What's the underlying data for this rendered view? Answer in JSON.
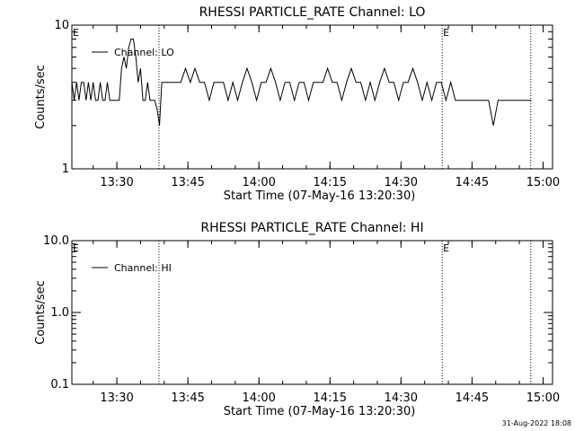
{
  "chart_data": [
    {
      "type": "line",
      "title": "RHESSI PARTICLE_RATE Channel: LO",
      "xlabel": "Start Time (07-May-16 13:20:30)",
      "ylabel": "Counts/sec",
      "y_scale": "log",
      "ylim": [
        1,
        10
      ],
      "yticks": [
        "1",
        "10"
      ],
      "x_unit": "minutes after 13:20:30",
      "xlim": [
        0,
        160
      ],
      "xticks": [
        {
          "label": "13:30",
          "value": 9.5
        },
        {
          "label": "13:45",
          "value": 24.5
        },
        {
          "label": "14:00",
          "value": 39.5
        },
        {
          "label": "14:15",
          "value": 54.5
        },
        {
          "label": "14:30",
          "value": 69.5
        },
        {
          "label": "14:45",
          "value": 84.5
        },
        {
          "label": "15:00",
          "value": 99.5
        }
      ],
      "event_lines": [
        18.4,
        78.2,
        96.9
      ],
      "event_markers": [
        {
          "text": "E",
          "x": 0
        },
        {
          "text": "E",
          "x": 78.2
        }
      ],
      "legend": {
        "label": "Channel: LO",
        "location": "top-left"
      },
      "series": [
        {
          "name": "Channel: LO",
          "x": [
            0,
            0.5,
            1.0,
            1.5,
            2.0,
            2.5,
            3.0,
            3.5,
            4.0,
            4.5,
            5.0,
            5.5,
            6.0,
            6.5,
            7.0,
            7.5,
            8.0,
            8.5,
            9.0,
            9.5,
            10.0,
            10.5,
            11.0,
            11.5,
            12.0,
            12.5,
            13.0,
            13.5,
            14.0,
            14.5,
            15.0,
            15.5,
            16.0,
            16.5,
            17.0,
            17.5,
            18.0,
            18.5,
            19.0,
            20,
            22,
            23,
            24,
            25,
            26,
            27,
            28,
            29,
            30,
            31,
            32,
            33,
            34,
            35,
            36,
            37,
            38,
            39,
            40,
            41,
            42,
            43,
            44,
            45,
            46,
            47,
            48,
            49,
            50,
            51,
            52,
            53,
            54,
            55,
            56,
            57,
            58,
            59,
            60,
            61,
            62,
            63,
            64,
            65,
            66,
            67,
            68,
            69,
            70,
            71,
            72,
            73,
            74,
            75,
            76,
            77,
            78,
            79,
            80,
            81,
            82,
            83,
            84,
            85,
            86,
            87,
            88,
            89,
            90,
            91,
            92,
            93,
            94,
            95,
            96,
            97
          ],
          "y": [
            4,
            3,
            4,
            3,
            4,
            4,
            3,
            4,
            3,
            4,
            3,
            3,
            4,
            3,
            3,
            4,
            3,
            3,
            3,
            3,
            3,
            5,
            6,
            5,
            7,
            8,
            8,
            6,
            4,
            5,
            3,
            3,
            4,
            3,
            3,
            3,
            2.6,
            2,
            4,
            4,
            4,
            4,
            5,
            4,
            5,
            4,
            4,
            3,
            4,
            4,
            4,
            3,
            4,
            3,
            4,
            5,
            4,
            3,
            4,
            4,
            5,
            4,
            3,
            4,
            4,
            3,
            4,
            4,
            3,
            4,
            4,
            4,
            5,
            4,
            4,
            3,
            4,
            5,
            4,
            4,
            3,
            4,
            3,
            4,
            5,
            4,
            4,
            3,
            4,
            4,
            5,
            4,
            3,
            4,
            3,
            4,
            4,
            3,
            4,
            3,
            3,
            3,
            3,
            3,
            3,
            3,
            3,
            2,
            3,
            3,
            3,
            3,
            3,
            3,
            3,
            3
          ]
        }
      ]
    },
    {
      "type": "line",
      "title": "RHESSI PARTICLE_RATE Channel: HI",
      "xlabel": "Start Time (07-May-16 13:20:30)",
      "ylabel": "Counts/sec",
      "y_scale": "log",
      "ylim": [
        0.1,
        10
      ],
      "yticks": [
        "0.1",
        "1.0",
        "10.0"
      ],
      "x_unit": "minutes after 13:20:30",
      "xlim": [
        0,
        160
      ],
      "xticks": [
        {
          "label": "13:30",
          "value": 9.5
        },
        {
          "label": "13:45",
          "value": 24.5
        },
        {
          "label": "14:00",
          "value": 39.5
        },
        {
          "label": "14:15",
          "value": 54.5
        },
        {
          "label": "14:30",
          "value": 69.5
        },
        {
          "label": "14:45",
          "value": 84.5
        },
        {
          "label": "15:00",
          "value": 99.5
        }
      ],
      "event_lines": [
        18.4,
        78.2,
        96.9
      ],
      "event_markers": [
        {
          "text": "E",
          "x": 0
        },
        {
          "text": "E",
          "x": 78.2
        }
      ],
      "legend": {
        "label": "Channel: HI",
        "location": "top-left"
      },
      "series": [
        {
          "name": "Channel: HI",
          "x": [],
          "y": []
        }
      ]
    }
  ],
  "footer": {
    "timestamp": "31-Aug-2022 18:08"
  }
}
